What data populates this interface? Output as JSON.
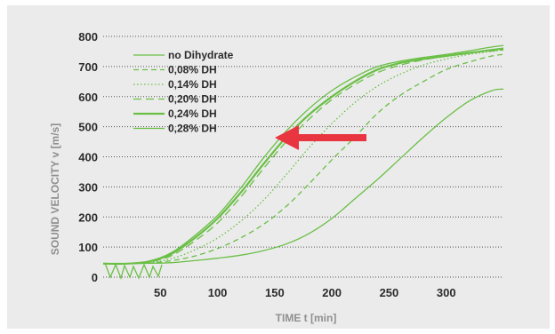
{
  "chart_data": {
    "type": "line",
    "title": "",
    "xlabel": "TIME t [min]",
    "ylabel": "SOUND VELOCITY v [m/s]",
    "xlim": [
      0,
      350
    ],
    "ylim": [
      0,
      800
    ],
    "xticks": [
      50,
      100,
      150,
      200,
      250,
      300
    ],
    "yticks": [
      0,
      100,
      200,
      300,
      400,
      500,
      600,
      700,
      800
    ],
    "grid": "horizontal dotted",
    "legend_position": "top-left",
    "colors": {
      "series": "#6abf45",
      "arrow": "#e8353f",
      "axis_title": "#8f8f8f"
    },
    "annotation": "red arrow pointing left",
    "series": [
      {
        "name": "no Dihydrate",
        "dash": "solid",
        "width": 1.3,
        "x": [
          0,
          20,
          40,
          60,
          80,
          100,
          120,
          140,
          160,
          180,
          200,
          220,
          240,
          260,
          280,
          300,
          320,
          340,
          350
        ],
        "y": [
          45,
          45,
          46,
          48,
          55,
          63,
          73,
          88,
          110,
          145,
          195,
          260,
          325,
          395,
          465,
          530,
          585,
          620,
          625
        ]
      },
      {
        "name": "0,08% DH",
        "dash": "dashed",
        "width": 1.3,
        "x": [
          0,
          20,
          40,
          60,
          80,
          100,
          120,
          140,
          160,
          180,
          200,
          220,
          240,
          260,
          280,
          300,
          320,
          340,
          350
        ],
        "y": [
          45,
          45,
          47,
          55,
          70,
          95,
          130,
          175,
          235,
          310,
          390,
          465,
          545,
          605,
          650,
          690,
          715,
          735,
          740
        ]
      },
      {
        "name": "0,14% DH",
        "dash": "dotted",
        "width": 1.3,
        "x": [
          0,
          20,
          40,
          60,
          80,
          100,
          120,
          140,
          160,
          180,
          200,
          220,
          240,
          260,
          280,
          300,
          320,
          340,
          350
        ],
        "y": [
          45,
          45,
          48,
          62,
          90,
          130,
          185,
          255,
          340,
          430,
          510,
          580,
          635,
          675,
          705,
          725,
          740,
          750,
          755
        ]
      },
      {
        "name": "0,20% DH",
        "dash": "longdash",
        "width": 1.3,
        "x": [
          0,
          20,
          40,
          60,
          80,
          100,
          120,
          140,
          160,
          180,
          200,
          220,
          240,
          260,
          280,
          300,
          320,
          340,
          350
        ],
        "y": [
          45,
          45,
          50,
          72,
          120,
          180,
          265,
          360,
          450,
          525,
          590,
          640,
          680,
          705,
          722,
          735,
          745,
          752,
          755
        ]
      },
      {
        "name": "0,24% DH",
        "dash": "solid",
        "width": 2.2,
        "x": [
          0,
          20,
          40,
          60,
          80,
          100,
          120,
          140,
          160,
          180,
          200,
          220,
          240,
          260,
          280,
          300,
          320,
          340,
          350
        ],
        "y": [
          45,
          45,
          52,
          78,
          130,
          195,
          280,
          375,
          465,
          540,
          600,
          650,
          690,
          712,
          725,
          735,
          745,
          755,
          760
        ]
      },
      {
        "name": "0,28% DH",
        "dash": "solid",
        "width": 1.3,
        "x": [
          0,
          20,
          40,
          60,
          80,
          100,
          120,
          140,
          160,
          180,
          200,
          220,
          240,
          260,
          280,
          300,
          320,
          340,
          350
        ],
        "y": [
          45,
          45,
          53,
          82,
          138,
          205,
          295,
          395,
          485,
          560,
          620,
          665,
          700,
          718,
          730,
          740,
          752,
          765,
          770
        ]
      }
    ]
  }
}
